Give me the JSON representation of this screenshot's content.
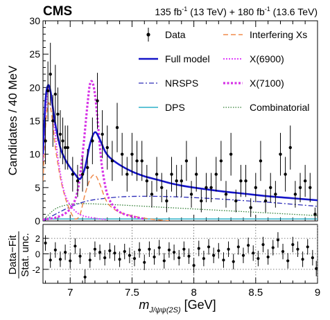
{
  "header": {
    "experiment": "CMS",
    "lumi_left": "135 fb",
    "lumi_left_sup": "-1",
    "lumi_left_rest": " (13 TeV) + 180 fb",
    "lumi_right_sup": "-1",
    "lumi_right_rest": " (13.6 TeV)"
  },
  "chart_data": [
    {
      "type": "line",
      "ylabel": "Candidates / 40 MeV",
      "xlim": [
        6.78,
        9.0
      ],
      "ylim": [
        0,
        30
      ],
      "x_ticks": [
        7,
        7.5,
        8,
        8.5,
        9
      ],
      "y_ticks": [
        0,
        5,
        10,
        15,
        20,
        25,
        30
      ],
      "legend": [
        {
          "label": "Data",
          "key": "data",
          "color": "#000000",
          "style": "marker"
        },
        {
          "label": "Interfering Xs",
          "key": "interf",
          "color": "#f08a4b",
          "style": "dashed"
        },
        {
          "label": "Full model",
          "key": "full",
          "color": "#1414c8",
          "style": "solid-thick"
        },
        {
          "label": "X(6900)",
          "key": "x6900",
          "color": "#e040fb",
          "style": "dotted"
        },
        {
          "label": "NRSPS",
          "key": "nrsps",
          "color": "#2a2ab8",
          "style": "dashdot"
        },
        {
          "label": "X(7100)",
          "key": "x7100",
          "color": "#d633e6",
          "style": "dotted-thick"
        },
        {
          "label": "DPS",
          "key": "dps",
          "color": "#2bb0c8",
          "style": "solid"
        },
        {
          "label": "Combinatorial",
          "key": "comb",
          "color": "#2e7d32",
          "style": "dotted"
        }
      ],
      "data": {
        "x": [
          6.8,
          6.82,
          6.84,
          6.86,
          6.88,
          6.9,
          6.92,
          6.94,
          6.96,
          6.98,
          7.02,
          7.06,
          7.1,
          7.14,
          7.18,
          7.22,
          7.26,
          7.3,
          7.34,
          7.38,
          7.42,
          7.46,
          7.5,
          7.54,
          7.58,
          7.62,
          7.66,
          7.7,
          7.74,
          7.78,
          7.82,
          7.86,
          7.9,
          7.94,
          7.98,
          8.02,
          8.06,
          8.1,
          8.14,
          8.18,
          8.22,
          8.26,
          8.3,
          8.34,
          8.38,
          8.42,
          8.46,
          8.5,
          8.54,
          8.58,
          8.62,
          8.66,
          8.7,
          8.74,
          8.78,
          8.82,
          8.86,
          8.9,
          8.94,
          8.98
        ],
        "y": [
          12,
          19.5,
          22,
          15,
          19,
          16,
          13,
          12,
          11,
          11,
          7,
          6,
          7,
          8,
          12,
          18,
          13,
          11,
          9,
          14,
          10,
          7,
          10,
          9,
          9,
          6,
          4,
          7,
          5,
          3,
          7,
          6,
          6,
          9,
          4,
          7,
          3,
          5,
          5,
          7,
          9,
          4,
          10,
          3,
          6,
          6,
          2,
          5,
          9,
          3,
          5,
          4,
          10,
          7,
          11,
          4,
          5,
          6,
          5,
          1
        ],
        "err": [
          3.5,
          4.4,
          4.7,
          3.9,
          4.4,
          4.0,
          3.6,
          3.5,
          3.3,
          3.3,
          2.6,
          2.4,
          2.6,
          2.8,
          3.5,
          4.2,
          3.6,
          3.3,
          3.0,
          3.7,
          3.2,
          2.6,
          3.2,
          3.0,
          3.0,
          2.4,
          2.0,
          2.6,
          2.2,
          1.7,
          2.6,
          2.4,
          2.4,
          3.0,
          2.0,
          2.6,
          1.7,
          2.2,
          2.2,
          2.6,
          3.0,
          2.0,
          3.2,
          1.7,
          2.4,
          2.4,
          1.4,
          2.2,
          3.0,
          1.7,
          2.2,
          2.0,
          3.2,
          2.6,
          3.3,
          2.0,
          2.2,
          2.4,
          2.2,
          1.0
        ]
      },
      "models": {
        "full": {
          "x": [
            6.78,
            6.8,
            6.82,
            6.84,
            6.86,
            6.88,
            6.92,
            6.96,
            7.0,
            7.04,
            7.08,
            7.12,
            7.16,
            7.2,
            7.24,
            7.28,
            7.32,
            7.4,
            7.5,
            7.6,
            7.7,
            7.8,
            7.9,
            8.0,
            8.2,
            8.4,
            8.6,
            8.8,
            9.0
          ],
          "y": [
            10,
            18,
            20.3,
            19.5,
            17,
            14.5,
            11,
            9.2,
            8,
            7,
            6.3,
            8,
            11.5,
            13.3,
            12.2,
            10.5,
            9.5,
            8.4,
            7.4,
            6.7,
            6.2,
            5.7,
            5.3,
            5.0,
            4.5,
            4.1,
            3.7,
            3.4,
            3.1
          ]
        },
        "interf": {
          "x": [
            6.78,
            6.8,
            6.82,
            6.84,
            6.86,
            6.88,
            6.92,
            6.96,
            7.0,
            7.04,
            7.08,
            7.12,
            7.16,
            7.2,
            7.24,
            7.28,
            7.32,
            7.4,
            7.5,
            7.6,
            7.8
          ],
          "y": [
            6,
            14,
            17.5,
            17,
            14.5,
            11,
            6.5,
            3.5,
            1.5,
            0.3,
            1,
            4,
            6.2,
            6.9,
            5.5,
            3.5,
            2.3,
            1.3,
            0.8,
            0.4,
            0
          ]
        },
        "x6900": {
          "x": [
            6.78,
            6.8,
            6.82,
            6.84,
            6.86,
            6.88,
            6.9,
            6.94,
            6.98,
            7.04,
            7.1,
            7.2,
            7.3
          ],
          "y": [
            9,
            16,
            19.5,
            19.2,
            16.5,
            13,
            9.5,
            5.2,
            3,
            1.5,
            0.8,
            0.4,
            0.2
          ]
        },
        "x7100": {
          "x": [
            6.78,
            6.9,
            7.0,
            7.06,
            7.1,
            7.14,
            7.16,
            7.18,
            7.2,
            7.22,
            7.24,
            7.26,
            7.3,
            7.36,
            7.44,
            7.6
          ],
          "y": [
            0.2,
            0.6,
            1.8,
            4.5,
            10,
            17.5,
            20.5,
            20.8,
            19,
            15.5,
            11.2,
            7.8,
            4,
            2,
            1,
            0.3
          ]
        },
        "nrsps": {
          "x": [
            6.78,
            6.9,
            7.0,
            7.1,
            7.2,
            7.4,
            7.6,
            7.8,
            8.0,
            8.2,
            8.4,
            8.6,
            8.8,
            9.0
          ],
          "y": [
            0,
            1.2,
            2.1,
            2.8,
            3.2,
            3.6,
            3.7,
            3.65,
            3.5,
            3.3,
            3.05,
            2.8,
            2.5,
            2.2
          ]
        },
        "dps": {
          "x": [
            6.78,
            9.0
          ],
          "y": [
            0.3,
            0.3
          ]
        },
        "comb": {
          "x": [
            6.78,
            6.84,
            6.9,
            7.0,
            7.1,
            7.2,
            7.4,
            7.6,
            7.8,
            8.0,
            8.3,
            8.6,
            9.0
          ],
          "y": [
            0,
            1.2,
            2.0,
            2.5,
            2.6,
            2.55,
            2.4,
            2.2,
            2.0,
            1.8,
            1.5,
            1.2,
            0.8
          ]
        }
      }
    },
    {
      "type": "scatter",
      "xlabel_main": "m",
      "xlabel_sub": "J/ψψ(2S)",
      "xlabel_unit": " [GeV]",
      "ylabel_top": "Data−Fit",
      "ylabel_bottom": "Stat. unc.",
      "xlim": [
        6.78,
        9.0
      ],
      "ylim": [
        -3.8,
        3.8
      ],
      "x_ticks": [
        7,
        7.5,
        8,
        8.5,
        9
      ],
      "x_tick_labels": [
        "7",
        "7.5",
        "8",
        "8.5",
        "9"
      ],
      "y_ticks": [
        -2,
        0,
        2
      ],
      "x": [
        6.8,
        6.84,
        6.88,
        6.92,
        6.96,
        7.0,
        7.04,
        7.08,
        7.12,
        7.16,
        7.2,
        7.24,
        7.28,
        7.32,
        7.36,
        7.4,
        7.44,
        7.48,
        7.52,
        7.56,
        7.6,
        7.64,
        7.68,
        7.72,
        7.76,
        7.8,
        7.84,
        7.88,
        7.92,
        7.96,
        8.0,
        8.04,
        8.08,
        8.12,
        8.16,
        8.2,
        8.24,
        8.28,
        8.32,
        8.36,
        8.4,
        8.44,
        8.48,
        8.52,
        8.56,
        8.6,
        8.64,
        8.68,
        8.72,
        8.76,
        8.8,
        8.84,
        8.88,
        8.92,
        8.96,
        8.99
      ],
      "y": [
        1.4,
        -0.8,
        0.5,
        -0.7,
        0.2,
        -0.9,
        1.0,
        -0.3,
        -3.0,
        -0.8,
        0.6,
        0.2,
        -0.5,
        0.4,
        0.1,
        -0.7,
        0.3,
        -0.2,
        -0.6,
        0.5,
        -1.1,
        0.6,
        -0.4,
        0.8,
        -0.9,
        0.5,
        0.2,
        -0.5,
        0.6,
        -0.3,
        -1.5,
        0.7,
        -0.6,
        0.9,
        -0.2,
        0.4,
        -0.8,
        0.6,
        -1.0,
        0.9,
        -0.2,
        1.1,
        0.1,
        -0.6,
        1.2,
        -0.4,
        0.8,
        1.8,
        0.3,
        -0.9,
        1.2,
        0.6,
        -0.7,
        0.9,
        -0.5,
        -1.9
      ],
      "err": 1
    }
  ]
}
